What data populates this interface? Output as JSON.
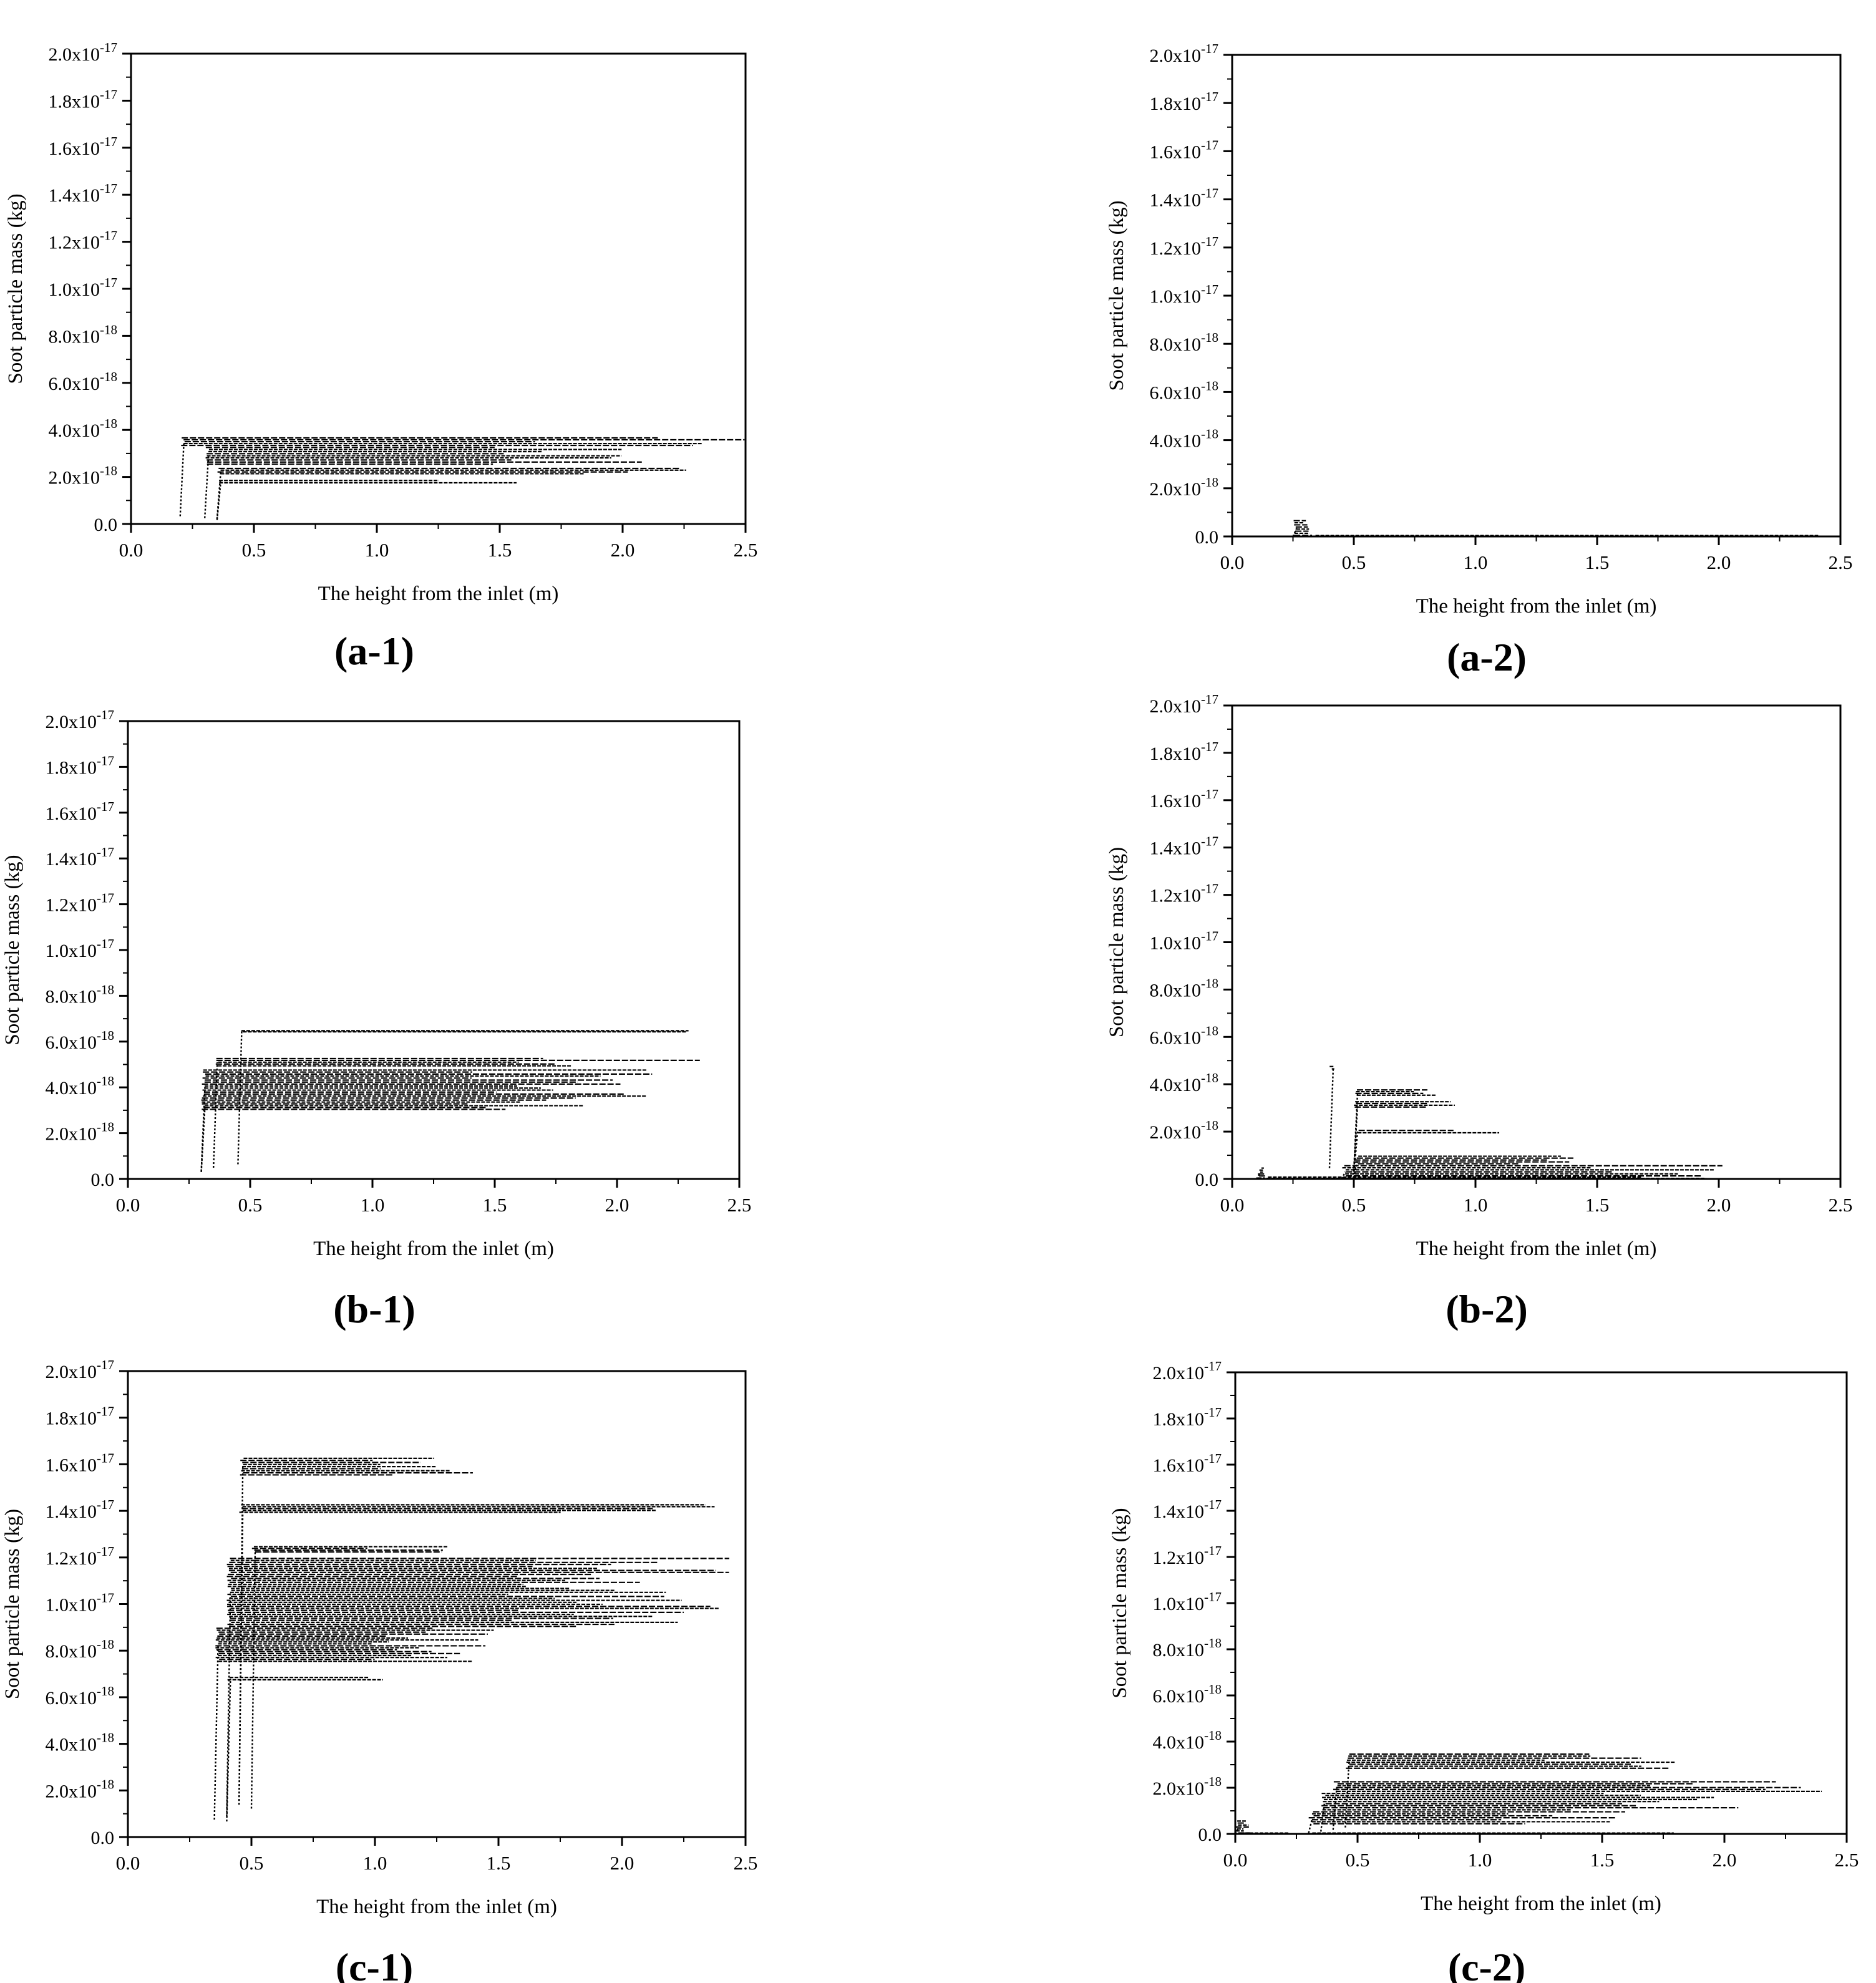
{
  "chart_data": [
    {
      "id": "a-1",
      "label": "(a-1)",
      "type": "scatter",
      "xlabel": "The height from the inlet (m)",
      "ylabel": "Soot particle mass (kg)",
      "xlim": [
        0,
        2.5
      ],
      "ylim": [
        0,
        2e-17
      ],
      "x_ticks": [
        "0.0",
        "0.5",
        "1.0",
        "1.5",
        "2.0",
        "2.5"
      ],
      "y_ticks": [
        {
          "m": "0.0",
          "e": ""
        },
        {
          "m": "2.0x10",
          "e": "-18"
        },
        {
          "m": "4.0x10",
          "e": "-18"
        },
        {
          "m": "6.0x10",
          "e": "-18"
        },
        {
          "m": "8.0x10",
          "e": "-18"
        },
        {
          "m": "1.0x10",
          "e": "-17"
        },
        {
          "m": "1.2x10",
          "e": "-17"
        },
        {
          "m": "1.4x10",
          "e": "-17"
        },
        {
          "m": "1.6x10",
          "e": "-17"
        },
        {
          "m": "1.8x10",
          "e": "-17"
        },
        {
          "m": "2.0x10",
          "e": "-17"
        }
      ],
      "series": [
        {
          "bands": [
            {
              "x0": 0.2,
              "x1": 2.5,
              "y0": 3.3e-18,
              "y1": 3.7e-18
            },
            {
              "x0": 0.3,
              "x1": 2.1,
              "y0": 2.5e-18,
              "y1": 3.3e-18
            },
            {
              "x0": 0.35,
              "x1": 2.4,
              "y0": 2.1e-18,
              "y1": 2.4e-18
            },
            {
              "x0": 0.35,
              "x1": 1.6,
              "y0": 1.7e-18,
              "y1": 1.9e-18
            }
          ]
        }
      ]
    },
    {
      "id": "a-2",
      "label": "(a-2)",
      "type": "scatter",
      "xlabel": "The height from the inlet (m)",
      "ylabel": "Soot particle mass (kg)",
      "xlim": [
        0,
        2.5
      ],
      "ylim": [
        0,
        2e-17
      ],
      "x_ticks": [
        "0.0",
        "0.5",
        "1.0",
        "1.5",
        "2.0",
        "2.5"
      ],
      "y_ticks": [
        {
          "m": "0.0",
          "e": ""
        },
        {
          "m": "2.0x10",
          "e": "-18"
        },
        {
          "m": "4.0x10",
          "e": "-18"
        },
        {
          "m": "6.0x10",
          "e": "-18"
        },
        {
          "m": "8.0x10",
          "e": "-18"
        },
        {
          "m": "1.0x10",
          "e": "-17"
        },
        {
          "m": "1.2x10",
          "e": "-17"
        },
        {
          "m": "1.4x10",
          "e": "-17"
        },
        {
          "m": "1.6x10",
          "e": "-17"
        },
        {
          "m": "1.8x10",
          "e": "-17"
        },
        {
          "m": "2.0x10",
          "e": "-17"
        }
      ],
      "series": [
        {
          "bands": [
            {
              "x0": 0.25,
              "x1": 0.33,
              "y0": 0.0,
              "y1": 7e-19
            },
            {
              "x0": 0.33,
              "x1": 2.5,
              "y0": 0.0,
              "y1": 5e-20
            }
          ]
        }
      ]
    },
    {
      "id": "b-1",
      "label": "(b-1)",
      "type": "scatter",
      "xlabel": "The height from the inlet (m)",
      "ylabel": "Soot particle mass (kg)",
      "xlim": [
        0,
        2.5
      ],
      "ylim": [
        0,
        2e-17
      ],
      "x_ticks": [
        "0.0",
        "0.5",
        "1.0",
        "1.5",
        "2.0",
        "2.5"
      ],
      "y_ticks": [
        {
          "m": "0.0",
          "e": ""
        },
        {
          "m": "2.0x10",
          "e": "-18"
        },
        {
          "m": "4.0x10",
          "e": "-18"
        },
        {
          "m": "6.0x10",
          "e": "-18"
        },
        {
          "m": "8.0x10",
          "e": "-18"
        },
        {
          "m": "1.0x10",
          "e": "-17"
        },
        {
          "m": "1.2x10",
          "e": "-17"
        },
        {
          "m": "1.4x10",
          "e": "-17"
        },
        {
          "m": "1.6x10",
          "e": "-17"
        },
        {
          "m": "1.8x10",
          "e": "-17"
        },
        {
          "m": "2.0x10",
          "e": "-17"
        }
      ],
      "series": [
        {
          "bands": [
            {
              "x0": 0.45,
              "x1": 2.47,
              "y0": 6.4e-18,
              "y1": 6.5e-18
            },
            {
              "x0": 0.35,
              "x1": 2.47,
              "y0": 4.9e-18,
              "y1": 5.3e-18
            },
            {
              "x0": 0.3,
              "x1": 2.3,
              "y0": 3.4e-18,
              "y1": 4.8e-18
            },
            {
              "x0": 0.3,
              "x1": 2.1,
              "y0": 3e-18,
              "y1": 3.4e-18
            }
          ]
        }
      ]
    },
    {
      "id": "b-2",
      "label": "(b-2)",
      "type": "scatter",
      "xlabel": "The height from the inlet (m)",
      "ylabel": "Soot particle mass (kg)",
      "xlim": [
        0,
        2.5
      ],
      "ylim": [
        0,
        2e-17
      ],
      "x_ticks": [
        "0.0",
        "0.5",
        "1.0",
        "1.5",
        "2.0",
        "2.5"
      ],
      "y_ticks": [
        {
          "m": "0.0",
          "e": ""
        },
        {
          "m": "2.0x10",
          "e": "-18"
        },
        {
          "m": "4.0x10",
          "e": "-18"
        },
        {
          "m": "6.0x10",
          "e": "-18"
        },
        {
          "m": "8.0x10",
          "e": "-18"
        },
        {
          "m": "1.0x10",
          "e": "-17"
        },
        {
          "m": "1.2x10",
          "e": "-17"
        },
        {
          "m": "1.4x10",
          "e": "-17"
        },
        {
          "m": "1.6x10",
          "e": "-17"
        },
        {
          "m": "1.8x10",
          "e": "-17"
        },
        {
          "m": "2.0x10",
          "e": "-17"
        }
      ],
      "series": [
        {
          "bands": [
            {
              "x0": 0.1,
              "x1": 0.14,
              "y0": 0.0,
              "y1": 5e-19
            },
            {
              "x0": 0.4,
              "x1": 0.42,
              "y0": 4.6e-18,
              "y1": 4.8e-18
            },
            {
              "x0": 0.5,
              "x1": 0.85,
              "y0": 3.5e-18,
              "y1": 3.8e-18
            },
            {
              "x0": 0.5,
              "x1": 0.92,
              "y0": 3e-18,
              "y1": 3.3e-18
            },
            {
              "x0": 0.5,
              "x1": 1.1,
              "y0": 1.9e-18,
              "y1": 2.1e-18
            },
            {
              "x0": 0.5,
              "x1": 1.5,
              "y0": 6e-19,
              "y1": 1e-18
            },
            {
              "x0": 0.45,
              "x1": 2.05,
              "y0": 0.0,
              "y1": 6e-19
            },
            {
              "x0": 0.14,
              "x1": 2.48,
              "y0": 0.0,
              "y1": 1e-19
            }
          ]
        }
      ]
    },
    {
      "id": "c-1",
      "label": "(c-1)",
      "type": "scatter",
      "xlabel": "The height from the inlet (m)",
      "ylabel": "Soot particle mass (kg)",
      "xlim": [
        0,
        2.5
      ],
      "ylim": [
        0,
        2e-17
      ],
      "x_ticks": [
        "0.0",
        "0.5",
        "1.0",
        "1.5",
        "2.0",
        "2.5"
      ],
      "y_ticks": [
        {
          "m": "0.0",
          "e": ""
        },
        {
          "m": "2.0x10",
          "e": "-18"
        },
        {
          "m": "4.0x10",
          "e": "-18"
        },
        {
          "m": "6.0x10",
          "e": "-18"
        },
        {
          "m": "8.0x10",
          "e": "-18"
        },
        {
          "m": "1.0x10",
          "e": "-17"
        },
        {
          "m": "1.2x10",
          "e": "-17"
        },
        {
          "m": "1.4x10",
          "e": "-17"
        },
        {
          "m": "1.6x10",
          "e": "-17"
        },
        {
          "m": "1.8x10",
          "e": "-17"
        },
        {
          "m": "2.0x10",
          "e": "-17"
        }
      ],
      "series": [
        {
          "bands": [
            {
              "x0": 0.45,
              "x1": 1.4,
              "y0": 1.55e-17,
              "y1": 1.63e-17
            },
            {
              "x0": 0.45,
              "x1": 2.4,
              "y0": 1.39e-17,
              "y1": 1.43e-17
            },
            {
              "x0": 0.5,
              "x1": 1.35,
              "y0": 1.22e-17,
              "y1": 1.25e-17
            },
            {
              "x0": 0.4,
              "x1": 2.45,
              "y0": 9e-18,
              "y1": 1.2e-17
            },
            {
              "x0": 0.35,
              "x1": 1.5,
              "y0": 7.5e-18,
              "y1": 9e-18
            },
            {
              "x0": 0.4,
              "x1": 1.05,
              "y0": 6.7e-18,
              "y1": 6.9e-18
            }
          ]
        }
      ]
    },
    {
      "id": "c-2",
      "label": "(c-2)",
      "type": "scatter",
      "xlabel": "The height from the inlet (m)",
      "ylabel": "Soot particle mass (kg)",
      "xlim": [
        0,
        2.5
      ],
      "ylim": [
        0,
        2e-17
      ],
      "x_ticks": [
        "0.0",
        "0.5",
        "1.0",
        "1.5",
        "2.0",
        "2.5"
      ],
      "y_ticks": [
        {
          "m": "0.0",
          "e": ""
        },
        {
          "m": "2.0x10",
          "e": "-18"
        },
        {
          "m": "4.0x10",
          "e": "-18"
        },
        {
          "m": "6.0x10",
          "e": "-18"
        },
        {
          "m": "8.0x10",
          "e": "-18"
        },
        {
          "m": "1.0x10",
          "e": "-17"
        },
        {
          "m": "1.2x10",
          "e": "-17"
        },
        {
          "m": "1.4x10",
          "e": "-17"
        },
        {
          "m": "1.6x10",
          "e": "-17"
        },
        {
          "m": "1.8x10",
          "e": "-17"
        },
        {
          "m": "2.0x10",
          "e": "-17"
        }
      ],
      "series": [
        {
          "bands": [
            {
              "x0": 0.0,
              "x1": 0.06,
              "y0": 0.0,
              "y1": 6e-19
            },
            {
              "x0": 0.0,
              "x1": 0.3,
              "y0": 0.0,
              "y1": 5e-20
            },
            {
              "x0": 0.45,
              "x1": 1.9,
              "y0": 2.8e-18,
              "y1": 3.5e-18
            },
            {
              "x0": 0.4,
              "x1": 2.4,
              "y0": 1.8e-18,
              "y1": 2.3e-18
            },
            {
              "x0": 0.35,
              "x1": 2.2,
              "y0": 1e-18,
              "y1": 1.8e-18
            },
            {
              "x0": 0.3,
              "x1": 1.6,
              "y0": 4e-19,
              "y1": 1e-18
            },
            {
              "x0": 0.3,
              "x1": 2.02,
              "y0": 0.0,
              "y1": 5e-20
            }
          ]
        }
      ]
    }
  ]
}
